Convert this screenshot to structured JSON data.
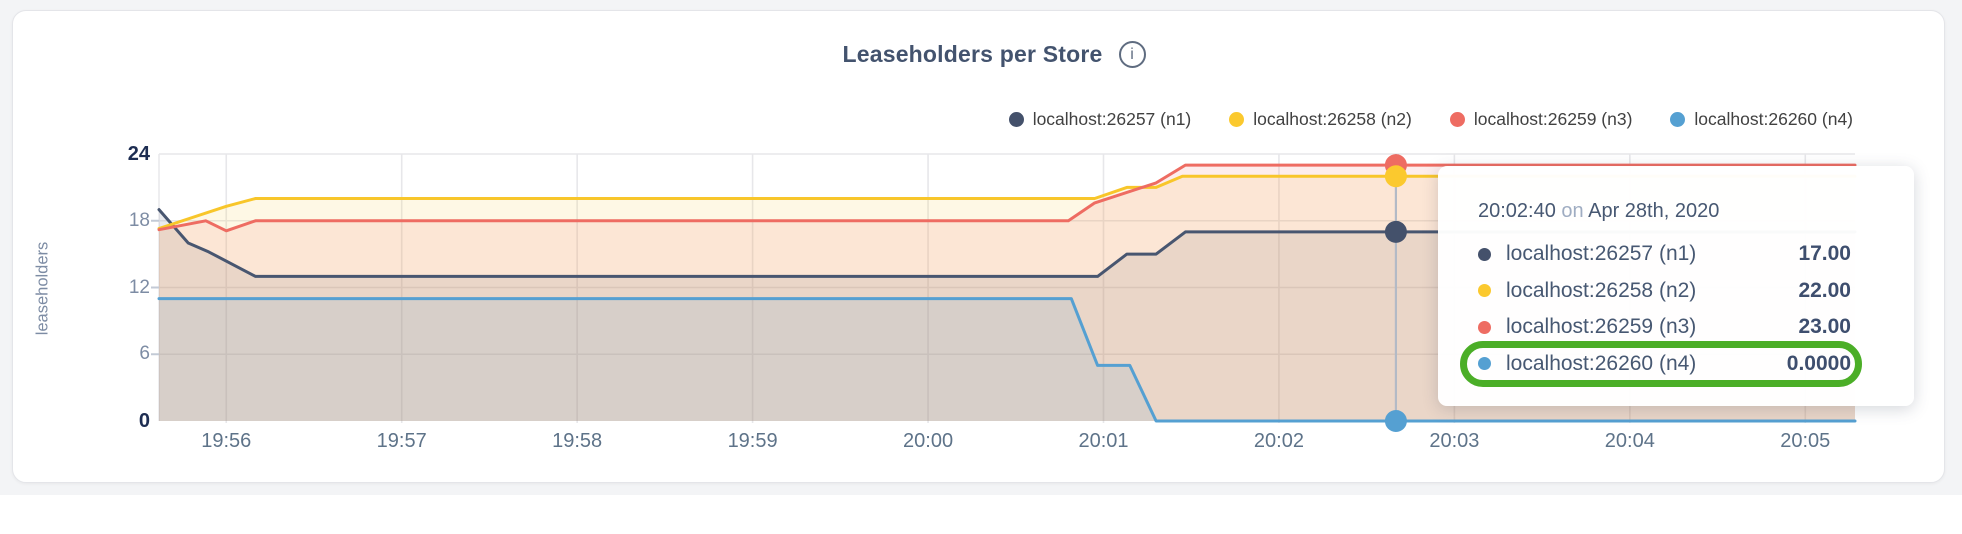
{
  "header": {
    "title": "Leaseholders per Store",
    "info_icon_glyph": "i"
  },
  "colors": {
    "accent_green_annotation": "#4bae27",
    "grid": "#e7e7ea",
    "hover_line": "#b3bac6",
    "page_bg": "#f3f4f6",
    "card_bg": "#ffffff"
  },
  "legend": {
    "items": [
      {
        "label": "localhost:26257 (n1)",
        "color": "#44516b"
      },
      {
        "label": "localhost:26258 (n2)",
        "color": "#fbc92e"
      },
      {
        "label": "localhost:26259 (n3)",
        "color": "#ee6c62"
      },
      {
        "label": "localhost:26260 (n4)",
        "color": "#55a0d2"
      }
    ]
  },
  "chart_data": {
    "type": "area",
    "title": "Leaseholders per Store",
    "ylabel": "leaseholders",
    "xlabel": "",
    "ylim": [
      0,
      24
    ],
    "y_ticks": [
      0,
      6,
      12,
      18,
      24
    ],
    "y_major_ticks": [
      0,
      24
    ],
    "x_ticks": [
      "19:56",
      "19:57",
      "19:58",
      "19:59",
      "20:00",
      "20:01",
      "20:02",
      "20:03",
      "20:04",
      "20:05"
    ],
    "x_tick_interval_sec": 60,
    "x_domain_sec": [
      -23,
      557
    ],
    "grid": true,
    "legend_position": "top-right",
    "fill_opacity": 0.12,
    "series": [
      {
        "name": "localhost:26257 (n1)",
        "color": "#485670",
        "points": [
          [
            -23,
            19
          ],
          [
            -13,
            16
          ],
          [
            -6,
            15.2
          ],
          [
            10,
            13
          ],
          [
            298,
            13
          ],
          [
            308,
            15
          ],
          [
            318,
            15
          ],
          [
            328,
            17
          ],
          [
            557,
            17
          ]
        ]
      },
      {
        "name": "localhost:26258 (n2)",
        "color": "#f8c62a",
        "points": [
          [
            -23,
            17.3
          ],
          [
            0,
            19.3
          ],
          [
            10,
            20
          ],
          [
            297,
            20
          ],
          [
            308,
            21
          ],
          [
            318,
            21
          ],
          [
            327,
            22
          ],
          [
            557,
            22
          ]
        ]
      },
      {
        "name": "localhost:26259 (n3)",
        "color": "#ee6c62",
        "points": [
          [
            -23,
            17.2
          ],
          [
            -7,
            18
          ],
          [
            0,
            17.1
          ],
          [
            10,
            18
          ],
          [
            288,
            18
          ],
          [
            297,
            19.6
          ],
          [
            318,
            21.4
          ],
          [
            328,
            23
          ],
          [
            557,
            23
          ]
        ]
      },
      {
        "name": "localhost:26260 (n4)",
        "color": "#55a0d2",
        "points": [
          [
            -23,
            11
          ],
          [
            289,
            11
          ],
          [
            298,
            5
          ],
          [
            309,
            5
          ],
          [
            318,
            0
          ],
          [
            557,
            0
          ]
        ]
      }
    ],
    "hover": {
      "t_sec": 400,
      "time": "20:02:40",
      "dot_values": [
        23,
        22,
        17,
        0
      ],
      "dot_colors": [
        "#ee6c62",
        "#fbc92e",
        "#44516b",
        "#55a0d2"
      ]
    }
  },
  "tooltip": {
    "time": "20:02:40",
    "connector": "on",
    "date": "Apr 28th, 2020",
    "rows": [
      {
        "label": "localhost:26257 (n1)",
        "value": "17.00",
        "color": "#44516b",
        "highlighted": false
      },
      {
        "label": "localhost:26258 (n2)",
        "value": "22.00",
        "color": "#fbc92e",
        "highlighted": false
      },
      {
        "label": "localhost:26259 (n3)",
        "value": "23.00",
        "color": "#ee6c62",
        "highlighted": false
      },
      {
        "label": "localhost:26260 (n4)",
        "value": "0.0000",
        "color": "#55a0d2",
        "highlighted": true
      }
    ]
  }
}
